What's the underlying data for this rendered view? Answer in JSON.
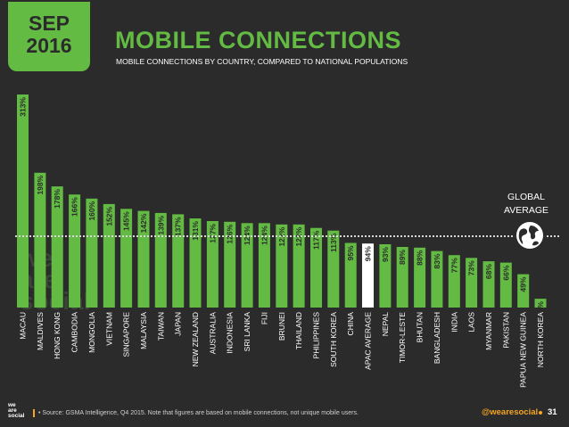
{
  "header": {
    "date_line1": "SEP",
    "date_line2": "2016",
    "title": "MOBILE CONNECTIONS",
    "subtitle": "MOBILE CONNECTIONS BY COUNTRY, COMPARED TO NATIONAL POPULATIONS"
  },
  "global_average": {
    "label_line1": "GLOBAL",
    "label_line2": "AVERAGE"
  },
  "watermark": {
    "line1": "we",
    "line2": "are",
    "line3": "social"
  },
  "footer": {
    "logo_line1": "we",
    "logo_line2": "are",
    "logo_line3": "social",
    "source": "• Source: GSMA Intelligence, Q4 2015. Note that figures are based on mobile connections, not unique mobile users.",
    "handle": "@wearesocial",
    "page": "31"
  },
  "colors": {
    "background": "#2b2b2b",
    "bar": "#63bb44",
    "highlight_bar": "#ffffff",
    "bar_label": "#2b2b2b",
    "axis_label": "#ffffff",
    "accent": "#f5a623"
  },
  "chart_data": {
    "type": "bar",
    "categories": [
      "MACAU",
      "MALDIVES",
      "HONG KONG",
      "CAMBODIA",
      "MONGOLIA",
      "VIETNAM",
      "SINGAPORE",
      "MALAYSIA",
      "TAIWAN",
      "JAPAN",
      "NEW ZEALAND",
      "AUSTRALIA",
      "INDONESIA",
      "SRI LANKA",
      "FIJI",
      "BRUNEI",
      "THAILAND",
      "PHILIPPINES",
      "SOUTH KOREA",
      "CHINA",
      "APAC AVERAGE",
      "NEPAL",
      "TIMOR-LESTE",
      "BHUTAN",
      "BANGLADESH",
      "INDIA",
      "LAOS",
      "MYANMAR",
      "PAKISTAN",
      "PAPUA NEW GUINEA",
      "NORTH KOREA"
    ],
    "values": [
      313,
      198,
      178,
      166,
      160,
      152,
      145,
      142,
      139,
      137,
      131,
      127,
      126,
      124,
      124,
      122,
      122,
      117,
      113,
      95,
      94,
      93,
      89,
      88,
      83,
      77,
      73,
      68,
      66,
      49,
      13
    ],
    "labels": [
      "313%",
      "198%",
      "178%",
      "166%",
      "160%",
      "152%",
      "145%",
      "142%",
      "139%",
      "137%",
      "131%",
      "127%",
      "126%",
      "124%",
      "124%",
      "122%",
      "122%",
      "117%",
      "113%",
      "95%",
      "94%",
      "93%",
      "89%",
      "88%",
      "83%",
      "77%",
      "73%",
      "68%",
      "66%",
      "49%",
      "13%"
    ],
    "highlight_index": 20,
    "ylim": [
      0,
      313
    ],
    "grid": false,
    "reference_line": {
      "value": 96,
      "label": "GLOBAL AVERAGE"
    }
  }
}
